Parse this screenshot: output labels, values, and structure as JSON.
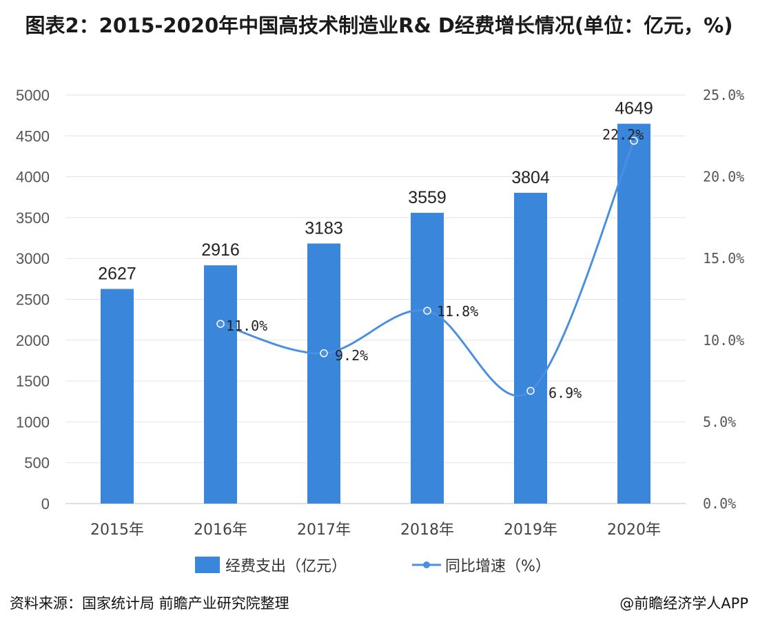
{
  "title": "图表2：2015-2020年中国高技术制造业R& D经费增长情况(单位：亿元，%)",
  "footer": {
    "source": "资料来源：国家统计局 前瞻产业研究院整理",
    "credit": "@前瞻经济学人APP"
  },
  "chart_data": {
    "type": "bar",
    "categories": [
      "2015年",
      "2016年",
      "2017年",
      "2018年",
      "2019年",
      "2020年"
    ],
    "series": [
      {
        "name": "经费支出（亿元）",
        "type": "bar",
        "axis": "left",
        "values": [
          2627,
          2916,
          3183,
          3559,
          3804,
          4649
        ],
        "labels": [
          "2627",
          "2916",
          "3183",
          "3559",
          "3804",
          "4649"
        ],
        "color": "#3a86db"
      },
      {
        "name": "同比增速（%）",
        "type": "line",
        "axis": "right",
        "values": [
          null,
          11.0,
          9.2,
          11.8,
          6.9,
          22.2
        ],
        "labels": [
          "",
          "11.0%",
          "9.2%",
          "11.8%",
          "6.9%",
          "22.2%"
        ],
        "color": "#4a8fe0"
      }
    ],
    "y_left": {
      "min": 0,
      "max": 5000,
      "ticks": [
        "0",
        "500",
        "1000",
        "1500",
        "2000",
        "2500",
        "3000",
        "3500",
        "4000",
        "4500",
        "5000"
      ]
    },
    "y_right": {
      "min": 0,
      "max": 25,
      "ticks": [
        "0.0%",
        "5.0%",
        "10.0%",
        "15.0%",
        "20.0%",
        "25.0%"
      ]
    },
    "grid": true,
    "legend_position": "bottom"
  }
}
